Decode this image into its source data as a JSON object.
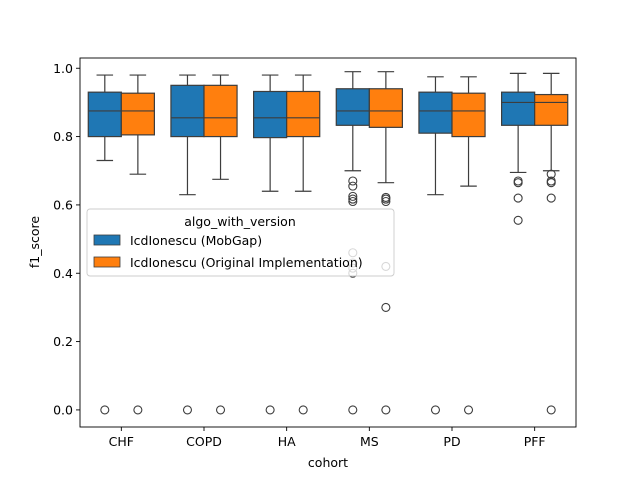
{
  "chart_data": {
    "type": "boxplot",
    "xlabel": "cohort",
    "ylabel": "f1_score",
    "ylim": [
      -0.05,
      1.03
    ],
    "yticks": [
      0.0,
      0.2,
      0.4,
      0.6,
      0.8,
      1.0
    ],
    "ytick_labels": [
      "0.0",
      "0.2",
      "0.4",
      "0.6",
      "0.8",
      "1.0"
    ],
    "categories": [
      "CHF",
      "COPD",
      "HA",
      "MS",
      "PD",
      "PFF"
    ],
    "legend": {
      "title": "algo_with_version",
      "placement": "center-left"
    },
    "grid": false,
    "series": [
      {
        "name": "IcdIonescu (MobGap)",
        "color": "#1f77b4",
        "boxes": [
          {
            "q1": 0.8,
            "median": 0.875,
            "q3": 0.93,
            "whisker_low": 0.73,
            "whisker_high": 0.98,
            "outliers": [
              0.0
            ]
          },
          {
            "q1": 0.8,
            "median": 0.855,
            "q3": 0.95,
            "whisker_low": 0.63,
            "whisker_high": 0.98,
            "outliers": [
              0.0
            ]
          },
          {
            "q1": 0.797,
            "median": 0.855,
            "q3": 0.932,
            "whisker_low": 0.64,
            "whisker_high": 0.98,
            "outliers": [
              0.0
            ]
          },
          {
            "q1": 0.833,
            "median": 0.875,
            "q3": 0.94,
            "whisker_low": 0.7,
            "whisker_high": 0.99,
            "outliers": [
              0.0,
              0.4,
              0.415,
              0.43,
              0.46,
              0.61,
              0.617,
              0.625,
              0.655,
              0.67
            ]
          },
          {
            "q1": 0.81,
            "median": 0.875,
            "q3": 0.93,
            "whisker_low": 0.63,
            "whisker_high": 0.975,
            "outliers": [
              0.0
            ]
          },
          {
            "q1": 0.833,
            "median": 0.9,
            "q3": 0.93,
            "whisker_low": 0.695,
            "whisker_high": 0.985,
            "outliers": [
              0.555,
              0.62,
              0.665,
              0.67
            ]
          }
        ]
      },
      {
        "name": "IcdIonescu (Original Implementation)",
        "color": "#ff7f0e",
        "boxes": [
          {
            "q1": 0.805,
            "median": 0.875,
            "q3": 0.927,
            "whisker_low": 0.69,
            "whisker_high": 0.98,
            "outliers": [
              0.0
            ]
          },
          {
            "q1": 0.8,
            "median": 0.855,
            "q3": 0.95,
            "whisker_low": 0.675,
            "whisker_high": 0.98,
            "outliers": [
              0.0
            ]
          },
          {
            "q1": 0.8,
            "median": 0.855,
            "q3": 0.932,
            "whisker_low": 0.64,
            "whisker_high": 0.98,
            "outliers": [
              0.0
            ]
          },
          {
            "q1": 0.827,
            "median": 0.875,
            "q3": 0.94,
            "whisker_low": 0.665,
            "whisker_high": 0.99,
            "outliers": [
              0.0,
              0.3,
              0.42,
              0.61,
              0.617,
              0.622
            ]
          },
          {
            "q1": 0.8,
            "median": 0.875,
            "q3": 0.927,
            "whisker_low": 0.655,
            "whisker_high": 0.975,
            "outliers": [
              0.0
            ]
          },
          {
            "q1": 0.833,
            "median": 0.9,
            "q3": 0.923,
            "whisker_low": 0.7,
            "whisker_high": 0.985,
            "outliers": [
              0.0,
              0.62,
              0.665,
              0.67,
              0.69
            ]
          }
        ]
      }
    ]
  }
}
